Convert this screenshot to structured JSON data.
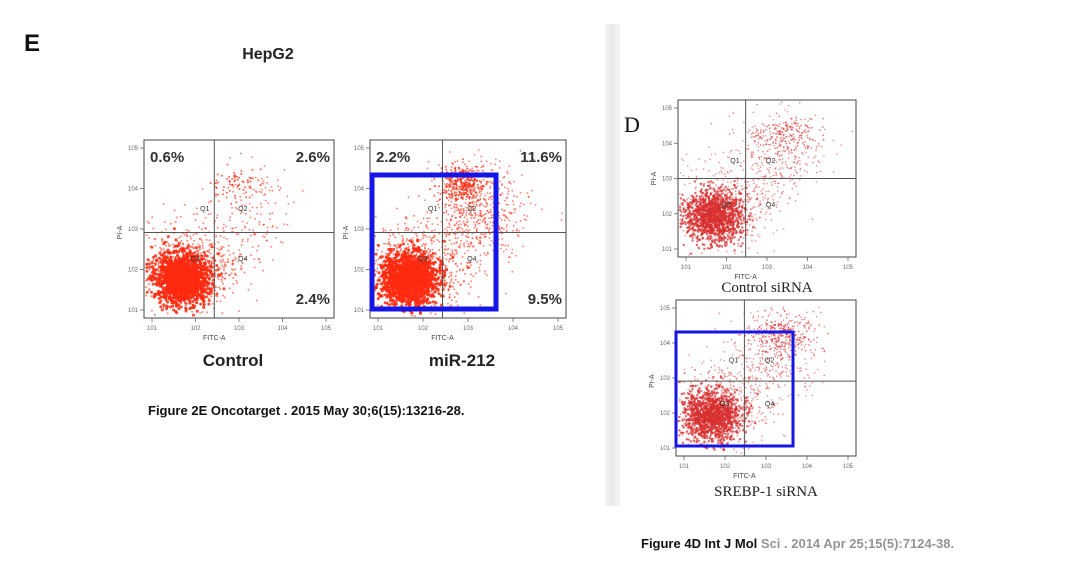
{
  "left_panel": {
    "letter": "E",
    "title": "HepG2",
    "caption": "Figure 2E Oncotarget . 2015 May 30;6(15):13216-28."
  },
  "right_panel": {
    "letter": "D",
    "caption": "Figure 4D Int J Mol Sci . 2014 Apr 25;15(5):7124-38."
  },
  "chart_data": [
    {
      "type": "scatter",
      "name": "Control",
      "xlabel": "FITC-A",
      "ylabel": "PI-A",
      "x_scale": "log",
      "y_scale": "log",
      "quadrant_labels": [
        "Q1",
        "Q2",
        "Q3",
        "Q4"
      ],
      "quadrants": {
        "upper_left": "0.6%",
        "upper_right": "2.6%",
        "lower_left": "",
        "lower_right": "2.4%"
      },
      "color": "#ff2a10",
      "highlight": false
    },
    {
      "type": "scatter",
      "name": "miR-212",
      "xlabel": "FITC-A",
      "ylabel": "PI-A",
      "x_scale": "log",
      "y_scale": "log",
      "quadrant_labels": [
        "Q1",
        "Q2",
        "Q3",
        "Q4"
      ],
      "quadrants": {
        "upper_left": "2.2%",
        "upper_right": "11.6%",
        "lower_left": "",
        "lower_right": "9.5%"
      },
      "color": "#ff2a10",
      "highlight": true,
      "highlight_color": "#1515e6"
    },
    {
      "type": "scatter",
      "name": "Control siRNA",
      "xlabel": "FITC-A",
      "ylabel": "PI-A",
      "x_scale": "log",
      "y_scale": "log",
      "quadrant_labels": [
        "Q1",
        "Q2",
        "Q3",
        "Q4"
      ],
      "color": "#d83030",
      "highlight": false
    },
    {
      "type": "scatter",
      "name": "SREBP-1 siRNA",
      "xlabel": "FITC-A",
      "ylabel": "PI-A",
      "x_scale": "log",
      "y_scale": "log",
      "quadrant_labels": [
        "Q1",
        "Q2",
        "Q3",
        "Q4"
      ],
      "color": "#d83030",
      "highlight": true,
      "highlight_color": "#1515e6"
    }
  ]
}
